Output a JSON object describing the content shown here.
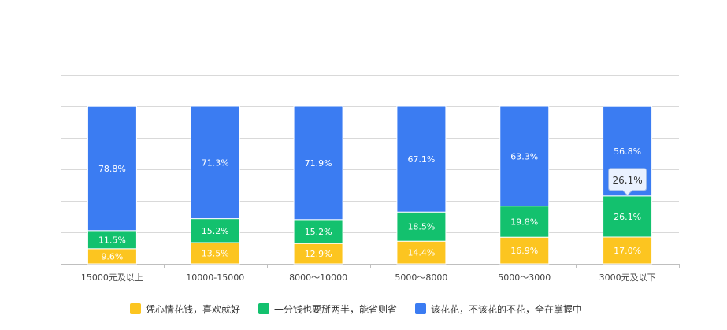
{
  "chart_data": {
    "type": "bar",
    "stacked": true,
    "normalized": true,
    "categories": [
      "15000元及以上",
      "10000-15000",
      "8000～10000",
      "5000～8000",
      "5000～3000",
      "3000元及以下"
    ],
    "series": [
      {
        "name": "凭心情花钱，喜欢就好",
        "color": "#FCC520",
        "values": [
          9.6,
          13.5,
          12.9,
          14.4,
          16.9,
          17.0
        ]
      },
      {
        "name": "一分钱也要掰两半，能省则省",
        "color": "#13C16E",
        "values": [
          11.5,
          15.2,
          15.2,
          18.5,
          19.8,
          26.1
        ]
      },
      {
        "name": "该花花，不该花的不花，全在掌握中",
        "color": "#3B7CF2",
        "values": [
          78.8,
          71.3,
          71.9,
          67.1,
          63.3,
          56.8
        ]
      }
    ],
    "value_labels": [
      [
        "9.6%",
        "13.5%",
        "12.9%",
        "14.4%",
        "16.9%",
        "17.0%"
      ],
      [
        "11.5%",
        "15.2%",
        "15.2%",
        "18.5%",
        "19.8%",
        "26.1%"
      ],
      [
        "78.8%",
        "71.3%",
        "71.9%",
        "67.1%",
        "63.3%",
        "56.8%"
      ]
    ],
    "ylim": [
      0,
      100
    ],
    "grid": true,
    "legend_position": "bottom",
    "tooltip": {
      "category_index": 5,
      "series_index": 1,
      "text": "26.1%"
    }
  }
}
